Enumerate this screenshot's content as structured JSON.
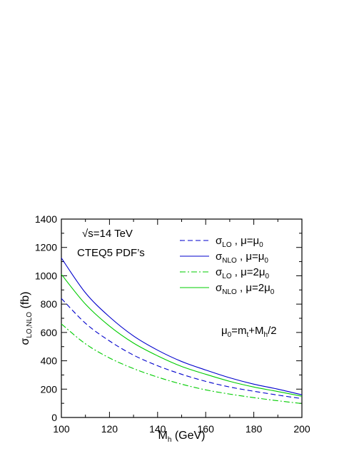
{
  "chart_data": {
    "type": "line",
    "x_axis": {
      "label": "M",
      "label_sub": "h",
      "label_rest": " (GeV)",
      "range": [
        100,
        200
      ],
      "ticks": [
        100,
        120,
        140,
        160,
        180,
        200
      ],
      "minor_step": 10
    },
    "y_axis": {
      "label": "σ",
      "label_sub": "LO,NLO",
      "label_rest": " (fb)",
      "range": [
        0,
        1400
      ],
      "ticks": [
        0,
        200,
        400,
        600,
        800,
        1000,
        1200,
        1400
      ],
      "minor_step": 100
    },
    "grid": false,
    "annotations": [
      {
        "text": "√s=14 TeV"
      },
      {
        "text": "CTEQ5 PDF’s"
      },
      {
        "parts": [
          [
            "μ",
            ""
          ],
          [
            "0",
            "sub"
          ],
          [
            "=m",
            ""
          ],
          [
            "t",
            "sub"
          ],
          [
            "+M",
            ""
          ],
          [
            "h",
            "sub"
          ],
          [
            "/2",
            ""
          ]
        ]
      }
    ],
    "legend_position": "top-right",
    "series": [
      {
        "name": "σLO , μ=μ0",
        "legend_parts": [
          [
            "σ",
            ""
          ],
          [
            "LO",
            "sub"
          ],
          [
            " , μ=μ",
            ""
          ],
          [
            "0",
            "sub"
          ]
        ],
        "color": "#0000cc",
        "dash": "dashed",
        "x": [
          100,
          110,
          120,
          130,
          140,
          150,
          160,
          170,
          180,
          190,
          200
        ],
        "y": [
          840,
          665,
          540,
          440,
          365,
          305,
          255,
          215,
          185,
          158,
          133
        ]
      },
      {
        "name": "σNLO , μ=μ0",
        "legend_parts": [
          [
            "σ",
            ""
          ],
          [
            "NLO",
            "sub"
          ],
          [
            " , μ=μ",
            ""
          ],
          [
            "0",
            "sub"
          ]
        ],
        "color": "#0000cc",
        "dash": "solid",
        "x": [
          100,
          110,
          120,
          130,
          140,
          150,
          160,
          170,
          180,
          190,
          200
        ],
        "y": [
          1125,
          880,
          710,
          575,
          475,
          395,
          335,
          280,
          235,
          200,
          160
        ]
      },
      {
        "name": "σLO , μ=2μ0",
        "legend_parts": [
          [
            "σ",
            ""
          ],
          [
            "LO",
            "sub"
          ],
          [
            " , μ=2μ",
            ""
          ],
          [
            "0",
            "sub"
          ]
        ],
        "color": "#00cc00",
        "dash": "dashdot",
        "x": [
          100,
          110,
          120,
          130,
          140,
          150,
          160,
          170,
          180,
          190,
          200
        ],
        "y": [
          660,
          520,
          420,
          345,
          285,
          235,
          195,
          165,
          140,
          118,
          98
        ]
      },
      {
        "name": "σNLO , μ=2μ0",
        "legend_parts": [
          [
            "σ",
            ""
          ],
          [
            "NLO",
            "sub"
          ],
          [
            " , μ=2μ",
            ""
          ],
          [
            "0",
            "sub"
          ]
        ],
        "color": "#00cc00",
        "dash": "solid",
        "x": [
          100,
          110,
          120,
          130,
          140,
          150,
          160,
          170,
          180,
          190,
          200
        ],
        "y": [
          1010,
          800,
          645,
          525,
          435,
          360,
          305,
          255,
          215,
          183,
          150
        ]
      }
    ]
  }
}
